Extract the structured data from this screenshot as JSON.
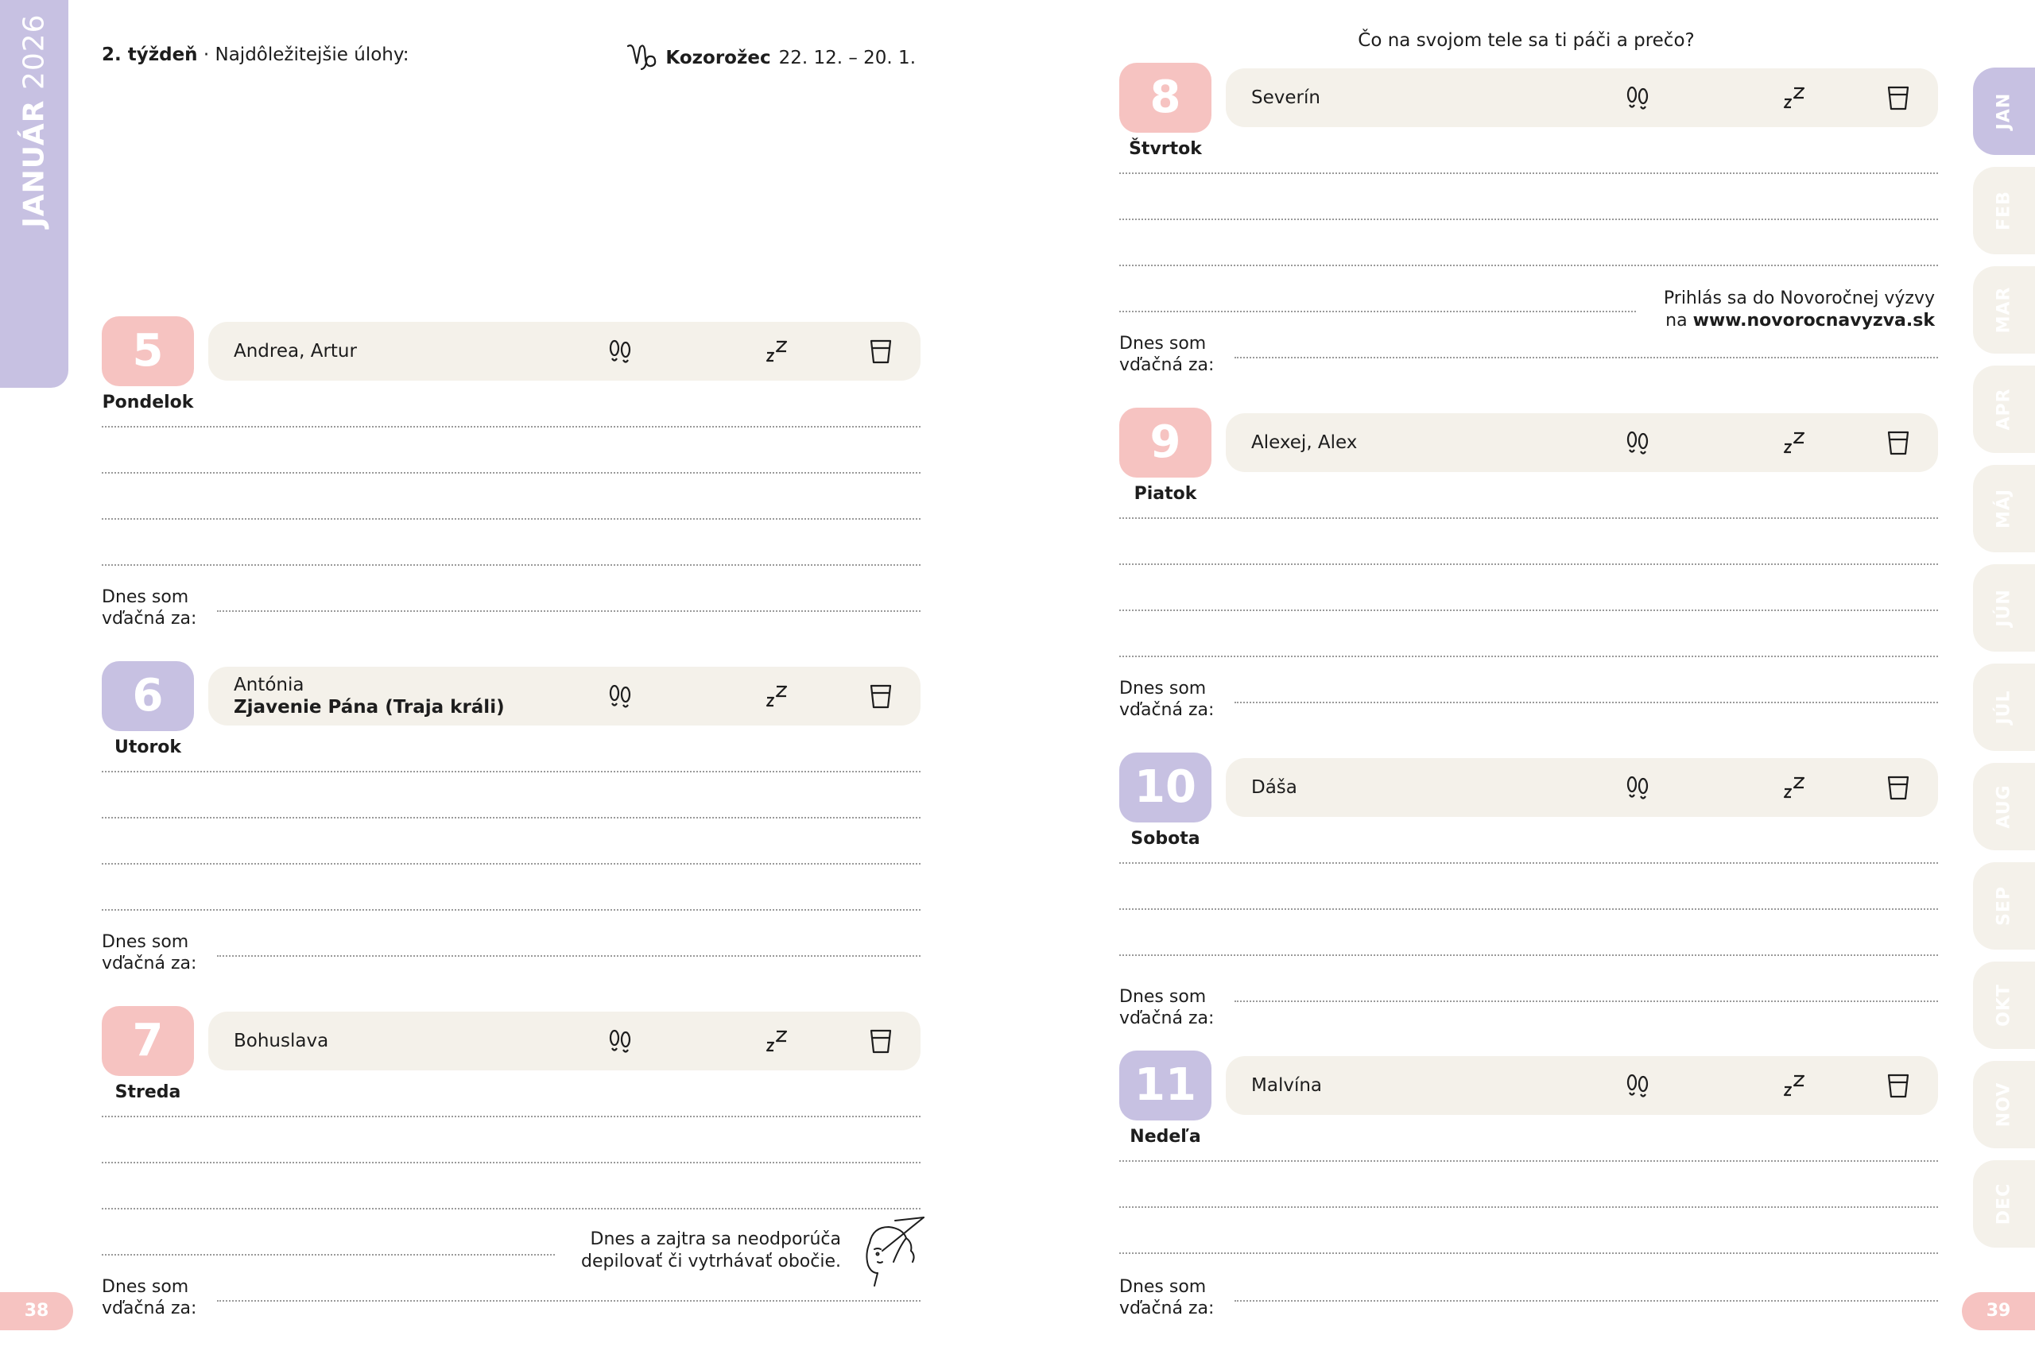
{
  "left_page": {
    "month_ribbon": {
      "month": "JANUÁR",
      "year": "2026"
    },
    "week_label": "2. týždeň",
    "separator": "·",
    "tasks_label": "Najdôležitejšie úlohy:",
    "zodiac": {
      "icon": "capricorn-icon",
      "name": "Kozorožec",
      "dates": "22. 12. – 20. 1."
    },
    "days": [
      {
        "number": "5",
        "weekday": "Pondelok",
        "names": "Andrea, Artur",
        "holiday": "",
        "color": "#f6c3c1"
      },
      {
        "number": "6",
        "weekday": "Utorok",
        "names": "Antónia",
        "holiday": "Zjavenie Pána (Traja králi)",
        "color": "#c7c1e2"
      },
      {
        "number": "7",
        "weekday": "Streda",
        "names": "Bohuslava",
        "holiday": "",
        "color": "#f6c3c1"
      }
    ],
    "tip": {
      "line1": "Dnes a zajtra sa neodporúča",
      "line2": "depilovať či vytrhávať obočie."
    },
    "page_number": "38"
  },
  "right_page": {
    "question": "Čo na svojom tele sa ti páči a prečo?",
    "days": [
      {
        "number": "8",
        "weekday": "Štvrtok",
        "names": "Severín",
        "holiday": "",
        "color": "#f6c3c1"
      },
      {
        "number": "9",
        "weekday": "Piatok",
        "names": "Alexej, Alex",
        "holiday": "",
        "color": "#f6c3c1"
      },
      {
        "number": "10",
        "weekday": "Sobota",
        "names": "Dáša",
        "holiday": "",
        "color": "#c7c1e2"
      },
      {
        "number": "11",
        "weekday": "Nedeľa",
        "names": "Malvína",
        "holiday": "",
        "color": "#c7c1e2"
      }
    ],
    "promo": {
      "line1": "Prihlás sa do Novoročnej výzvy",
      "prefix": "na ",
      "url": "www.novorocnavyzva.sk"
    },
    "month_tabs": [
      "JAN",
      "FEB",
      "MAR",
      "APR",
      "MÁJ",
      "JÚN",
      "JÚL",
      "AUG",
      "SEP",
      "OKT",
      "NOV",
      "DEC"
    ],
    "active_tab": "JAN",
    "page_number": "39"
  },
  "gratitude": {
    "line1": "Dnes som",
    "line2": "vďačná za:"
  },
  "icons": {
    "steps": "footprints-icon",
    "sleep": "sleep-icon",
    "water": "water-cup-icon",
    "tip": "woman-plucking-eyebrows-icon"
  },
  "colors": {
    "pink": "#f6c3c1",
    "purple": "#c7c1e2",
    "pill": "#f4f1ea",
    "tab_inactive": "#f4f1ea"
  }
}
